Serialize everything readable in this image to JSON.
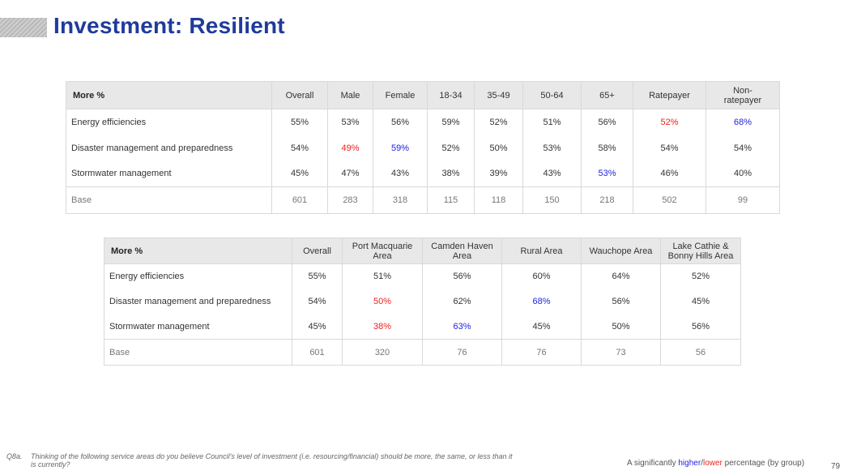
{
  "title": "Investment: Resilient",
  "table1": {
    "corner": "More %",
    "columns": [
      "Overall",
      "Male",
      "Female",
      "18-34",
      "35-49",
      "50-64",
      "65+",
      "Ratepayer",
      "Non-ratepayer"
    ],
    "rows": [
      {
        "label": "Energy efficiencies",
        "values": [
          "55%",
          "53%",
          "56%",
          "59%",
          "52%",
          "51%",
          "56%",
          "52%",
          "68%"
        ],
        "flags": [
          "",
          "",
          "",
          "",
          "",
          "",
          "",
          "lo",
          "hi"
        ]
      },
      {
        "label": "Disaster management and preparedness",
        "values": [
          "54%",
          "49%",
          "59%",
          "52%",
          "50%",
          "53%",
          "58%",
          "54%",
          "54%"
        ],
        "flags": [
          "",
          "lo",
          "hi",
          "",
          "",
          "",
          "",
          "",
          ""
        ]
      },
      {
        "label": "Stormwater management",
        "values": [
          "45%",
          "47%",
          "43%",
          "38%",
          "39%",
          "43%",
          "53%",
          "46%",
          "40%"
        ],
        "flags": [
          "",
          "",
          "",
          "",
          "",
          "",
          "hi",
          "",
          ""
        ]
      }
    ],
    "base": {
      "label": "Base",
      "values": [
        "601",
        "283",
        "318",
        "115",
        "118",
        "150",
        "218",
        "502",
        "99"
      ]
    }
  },
  "table2": {
    "corner": "More %",
    "columns": [
      "Overall",
      "Port Macquarie Area",
      "Camden Haven Area",
      "Rural Area",
      "Wauchope Area",
      "Lake Cathie & Bonny Hills Area"
    ],
    "rows": [
      {
        "label": "Energy efficiencies",
        "values": [
          "55%",
          "51%",
          "56%",
          "60%",
          "64%",
          "52%"
        ],
        "flags": [
          "",
          "",
          "",
          "",
          "",
          ""
        ]
      },
      {
        "label": "Disaster management and preparedness",
        "values": [
          "54%",
          "50%",
          "62%",
          "68%",
          "56%",
          "45%"
        ],
        "flags": [
          "",
          "lo",
          "",
          "hi",
          "",
          ""
        ]
      },
      {
        "label": "Stormwater management",
        "values": [
          "45%",
          "38%",
          "63%",
          "45%",
          "50%",
          "56%"
        ],
        "flags": [
          "",
          "lo",
          "hi",
          "",
          "",
          ""
        ]
      }
    ],
    "base": {
      "label": "Base",
      "values": [
        "601",
        "320",
        "76",
        "76",
        "73",
        "56"
      ]
    }
  },
  "footnote": {
    "qid": "Q8a.",
    "text": "Thinking of the following service areas do you believe Council's level of investment (i.e. resourcing/financial) should be more, the same, or less than it is currently?"
  },
  "legend": {
    "prefix": "A significantly ",
    "higher": "higher",
    "sep": "/",
    "lower": "lower",
    "suffix": " percentage (by group)"
  },
  "page_number": "79",
  "colors": {
    "title": "#1f3b9a",
    "higher": "#2222dd",
    "lower": "#ee2222",
    "header_bg": "#e8e8e8"
  }
}
